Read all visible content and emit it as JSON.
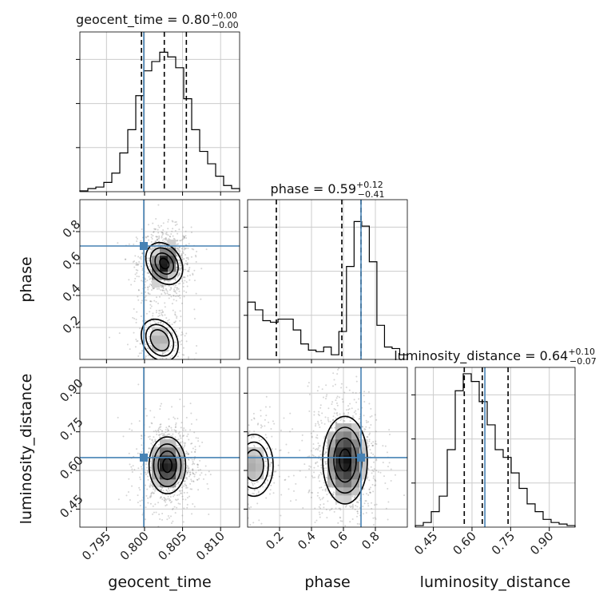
{
  "chart_data": {
    "type": "corner",
    "parameters": [
      "geocent_time",
      "phase",
      "luminosity_distance"
    ],
    "truths": [
      0.7999,
      0.71,
      0.65
    ],
    "truth_color": "#4682b4",
    "grid": true,
    "titles": [
      {
        "text": "geocent_time = 0.80",
        "sup": "+0.00",
        "sub": "−0.00"
      },
      {
        "text": "phase = 0.59",
        "sup": "+0.12",
        "sub": "−0.41"
      },
      {
        "text": "luminosity_distance = 0.64",
        "sup": "+0.10",
        "sub": "−0.07"
      }
    ],
    "ranges": [
      [
        0.7915,
        0.8125
      ],
      [
        0.0,
        1.0
      ],
      [
        0.38,
        1.0
      ]
    ],
    "ticks": [
      {
        "values": [
          0.795,
          0.8,
          0.805,
          0.81
        ],
        "labels": [
          "0.795",
          "0.800",
          "0.805",
          "0.810"
        ]
      },
      {
        "values": [
          0.2,
          0.4,
          0.6,
          0.8
        ],
        "labels": [
          "0.2",
          "0.4",
          "0.6",
          "0.8"
        ]
      },
      {
        "values": [
          0.45,
          0.6,
          0.75,
          0.9
        ],
        "labels": [
          "0.45",
          "0.60",
          "0.75",
          "0.90"
        ]
      }
    ],
    "quantiles": [
      [
        0.7996,
        0.8026,
        0.8055
      ],
      [
        0.18,
        0.59,
        0.71
      ],
      [
        0.57,
        0.64,
        0.74
      ]
    ],
    "histograms": [
      {
        "bin_edges_range": [
          0.7915,
          0.8125
        ],
        "counts": [
          0.005,
          0.02,
          0.03,
          0.06,
          0.12,
          0.25,
          0.4,
          0.62,
          0.78,
          0.84,
          0.9,
          0.87,
          0.8,
          0.6,
          0.4,
          0.26,
          0.18,
          0.1,
          0.04,
          0.02
        ]
      },
      {
        "bin_edges_range": [
          0.0,
          1.0
        ],
        "counts": [
          0.37,
          0.32,
          0.25,
          0.24,
          0.26,
          0.26,
          0.19,
          0.1,
          0.06,
          0.05,
          0.08,
          0.03,
          0.18,
          0.6,
          0.89,
          0.86,
          0.63,
          0.22,
          0.08,
          0.07,
          0.03
        ]
      },
      {
        "bin_edges_range": [
          0.38,
          1.0
        ],
        "counts": [
          0.01,
          0.03,
          0.1,
          0.2,
          0.5,
          0.88,
          0.99,
          0.94,
          0.81,
          0.66,
          0.5,
          0.45,
          0.35,
          0.25,
          0.15,
          0.1,
          0.05,
          0.03,
          0.02,
          0.01
        ]
      }
    ],
    "density_peaks": [
      {
        "pair": [
          0,
          1
        ],
        "modes": [
          [
            0.8026,
            0.6,
            0.35,
            0.0011,
            0.07,
            1.0
          ],
          [
            0.802,
            0.12,
            0.22,
            0.0011,
            0.07,
            0.35
          ]
        ]
      },
      {
        "pair": [
          0,
          2
        ],
        "modes": [
          [
            0.803,
            0.62,
            0.0,
            0.0012,
            0.055,
            1.0
          ]
        ]
      },
      {
        "pair": [
          1,
          2
        ],
        "modes": [
          [
            0.61,
            0.64,
            0.0,
            0.07,
            0.085,
            1.0
          ],
          [
            0.04,
            0.62,
            0.0,
            0.06,
            0.06,
            0.35
          ]
        ]
      }
    ]
  }
}
